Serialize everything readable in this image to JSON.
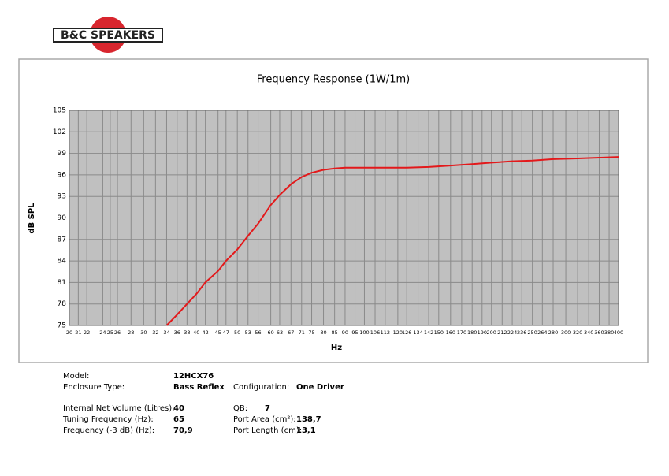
{
  "logo": "B&C SPEAKERS",
  "chart_data": {
    "type": "line",
    "title": "Frequency Response (1W/1m)",
    "xlabel": "Hz",
    "ylabel": "dB SPL",
    "x": [
      34,
      36,
      38,
      40,
      42,
      45,
      47,
      50,
      53,
      56,
      60,
      63,
      67,
      71,
      75,
      80,
      85,
      90,
      100,
      112,
      126,
      142,
      160,
      180,
      200,
      224,
      250,
      280,
      320,
      360,
      400
    ],
    "series": [
      {
        "color": "#e3191b",
        "values": [
          75,
          76.5,
          78,
          79.4,
          81,
          82.6,
          84,
          85.6,
          87.5,
          89.2,
          91.8,
          93.2,
          94.7,
          95.7,
          96.3,
          96.7,
          96.9,
          97,
          97,
          97,
          97,
          97.1,
          97.3,
          97.5,
          97.7,
          97.9,
          98,
          98.2,
          98.3,
          98.4,
          98.5
        ]
      }
    ],
    "xscale": "log",
    "xlim": [
      20,
      400
    ],
    "xticks": [
      20,
      21,
      22,
      24,
      25,
      26,
      28,
      30,
      32,
      34,
      36,
      38,
      40,
      42,
      45,
      47,
      50,
      53,
      56,
      60,
      63,
      67,
      71,
      75,
      80,
      85,
      90,
      95,
      100,
      106,
      112,
      120,
      126,
      134,
      142,
      150,
      160,
      170,
      180,
      190,
      200,
      212,
      224,
      236,
      250,
      264,
      280,
      300,
      320,
      340,
      360,
      380,
      400
    ],
    "ylim": [
      75,
      105
    ],
    "yticks": [
      75,
      78,
      81,
      84,
      87,
      90,
      93,
      96,
      99,
      102,
      105
    ],
    "grid": true
  },
  "specs": [
    {
      "label": "Model:",
      "value": "12HCX76"
    },
    {
      "label": "Enclosure Type:",
      "value": "Bass Reflex"
    },
    {
      "label": "Configuration:",
      "value": "One Driver"
    },
    {
      "label": "Internal  Net Volume (Litres):",
      "value": "40"
    },
    {
      "label": "QB:",
      "value": "7"
    },
    {
      "label": "Tuning Frequency (Hz):",
      "value": "65"
    },
    {
      "label": "Port Area (cm²):",
      "value": "138,7"
    },
    {
      "label": "Frequency (-3 dB) (Hz):",
      "value": "70,9"
    },
    {
      "label": "Port Length (cm):",
      "value": "13,1"
    }
  ]
}
